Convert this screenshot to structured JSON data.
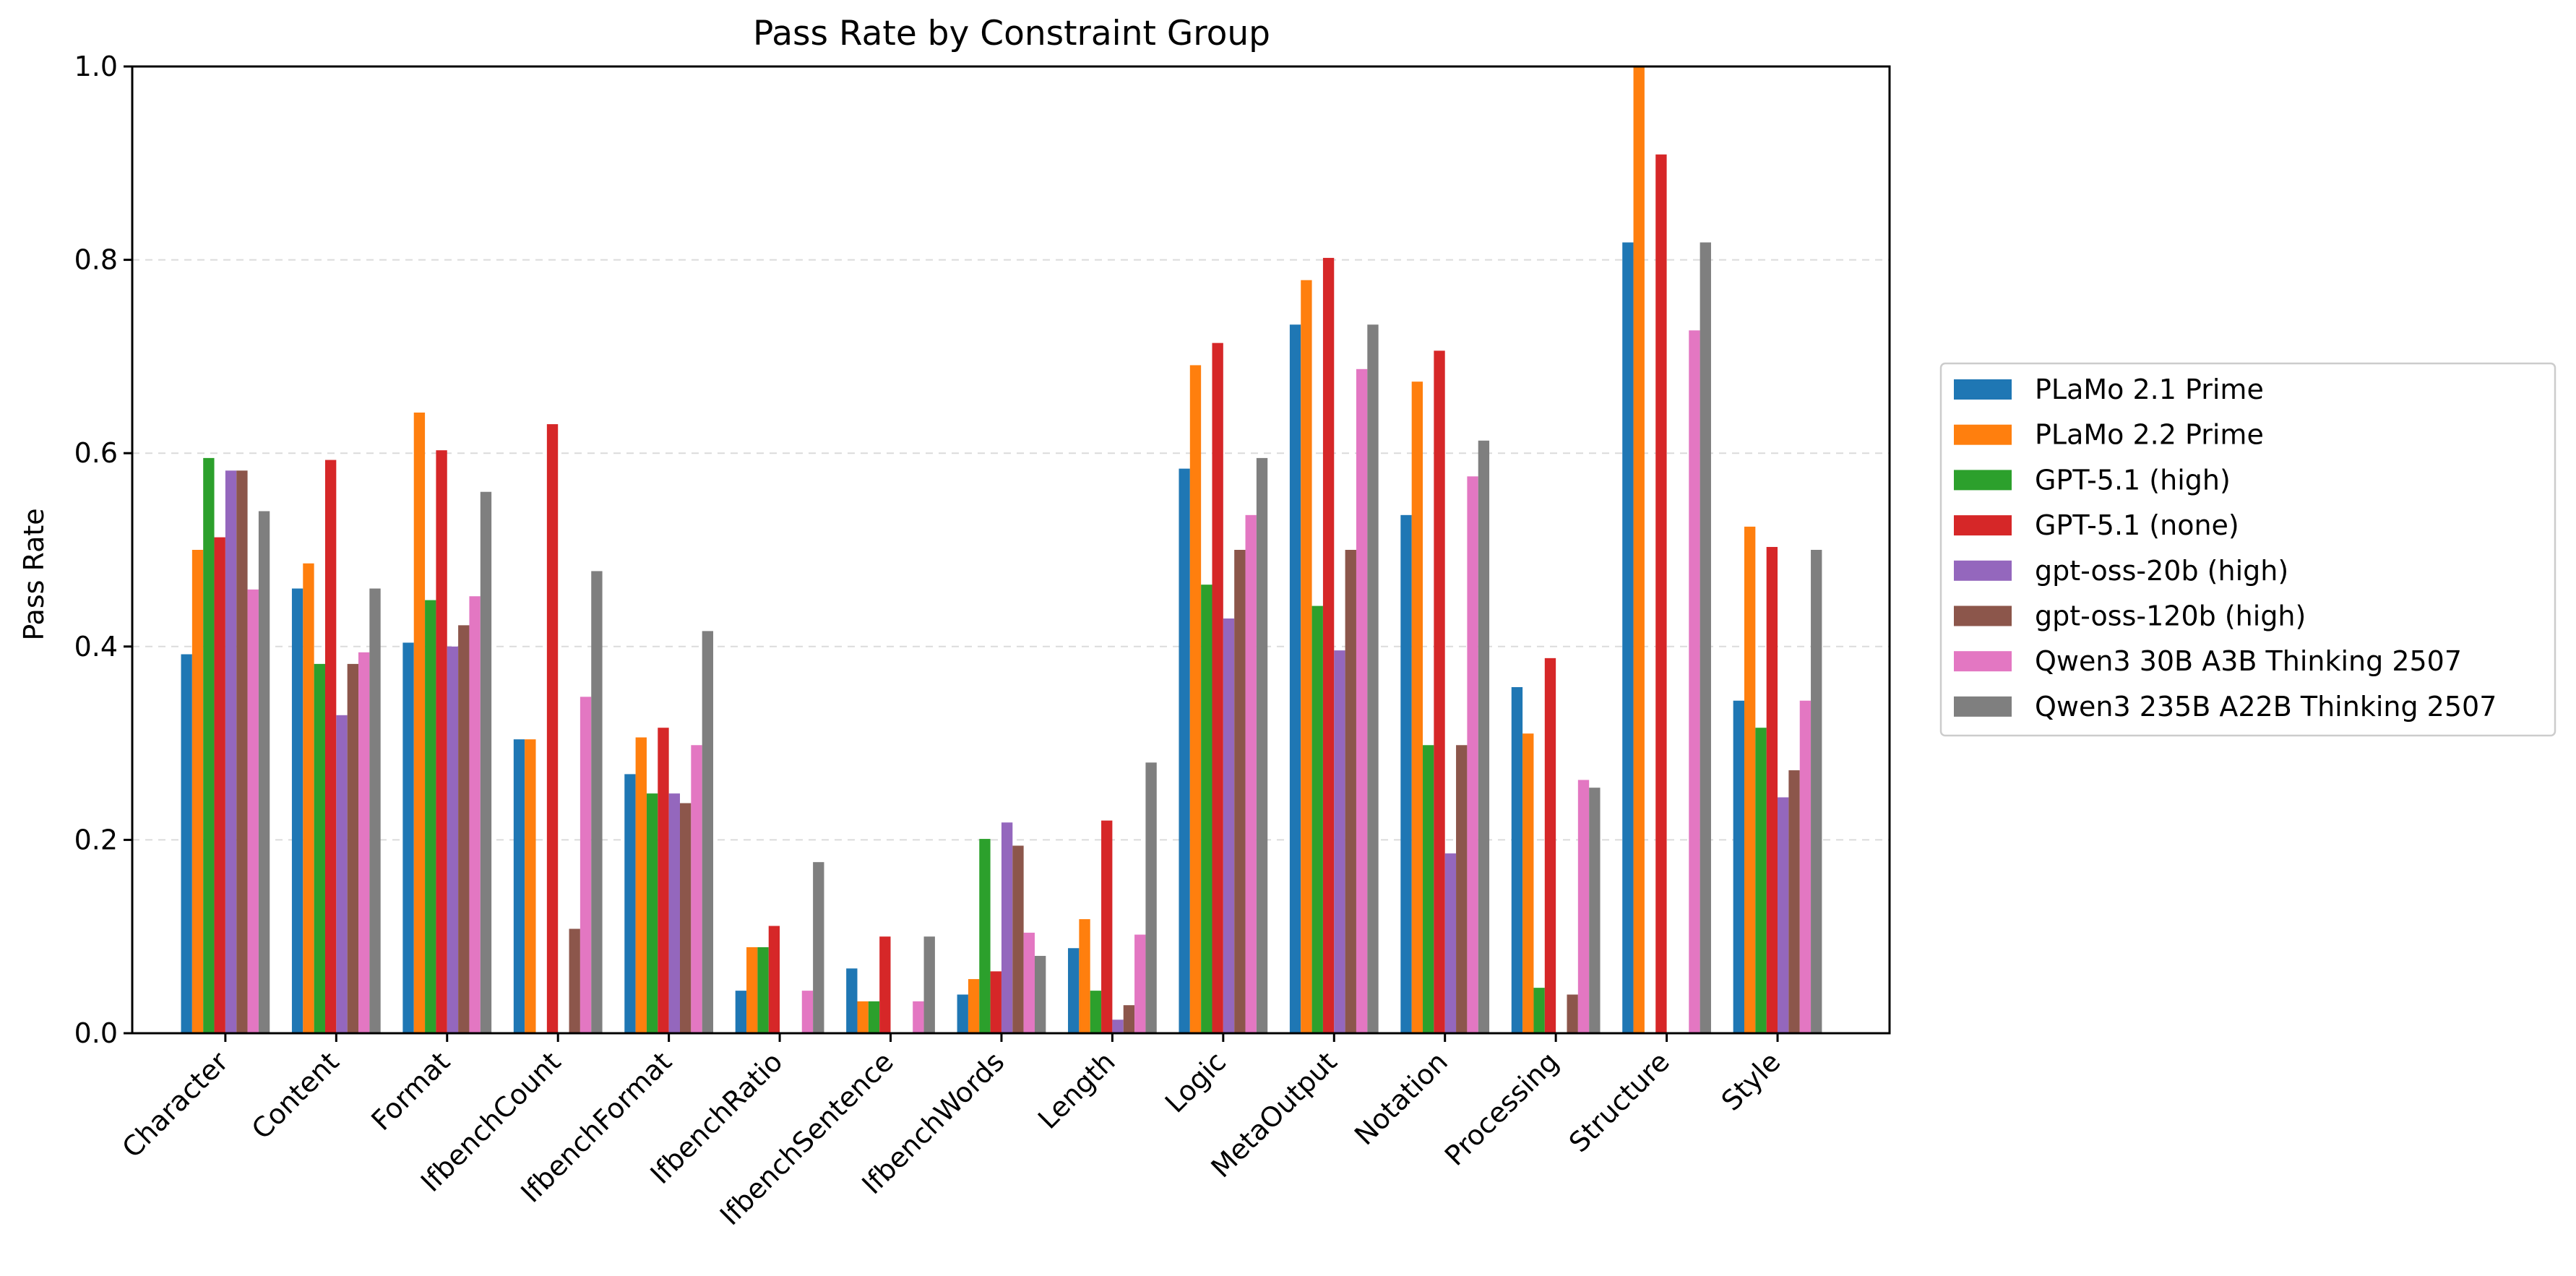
{
  "chart_data": {
    "type": "bar",
    "title": "Pass Rate by Constraint Group",
    "xlabel": "",
    "ylabel": "Pass Rate",
    "ylim": [
      0,
      1.0
    ],
    "yticks": [
      "0.0",
      "0.2",
      "0.4",
      "0.6",
      "0.8",
      "1.0"
    ],
    "grid": "y-dashed",
    "legend_position": "right",
    "categories": [
      "Character",
      "Content",
      "Format",
      "IfbenchCount",
      "IfbenchFormat",
      "IfbenchRatio",
      "IfbenchSentence",
      "IfbenchWords",
      "Length",
      "Logic",
      "MetaOutput",
      "Notation",
      "Processing",
      "Structure",
      "Style"
    ],
    "series": [
      {
        "name": "PLaMo 2.1 Prime",
        "color": "#1f77b4",
        "values": [
          0.392,
          0.46,
          0.404,
          0.304,
          0.268,
          0.044,
          0.067,
          0.04,
          0.088,
          0.584,
          0.733,
          0.536,
          0.358,
          0.818,
          0.344
        ]
      },
      {
        "name": "PLaMo 2.2 Prime",
        "color": "#ff7f0e",
        "values": [
          0.5,
          0.486,
          0.642,
          0.304,
          0.306,
          0.089,
          0.033,
          0.056,
          0.118,
          0.691,
          0.779,
          0.674,
          0.31,
          1.0,
          0.524
        ]
      },
      {
        "name": "GPT-5.1 (high)",
        "color": "#2ca02c",
        "values": [
          0.595,
          0.382,
          0.448,
          0.0,
          0.248,
          0.089,
          0.033,
          0.201,
          0.044,
          0.464,
          0.442,
          0.298,
          0.047,
          0.0,
          0.316
        ]
      },
      {
        "name": "GPT-5.1 (none)",
        "color": "#d62728",
        "values": [
          0.513,
          0.593,
          0.603,
          0.63,
          0.316,
          0.111,
          0.1,
          0.064,
          0.22,
          0.714,
          0.802,
          0.706,
          0.388,
          0.909,
          0.503
        ]
      },
      {
        "name": "gpt-oss-20b (high)",
        "color": "#9467bd",
        "values": [
          0.582,
          0.329,
          0.4,
          0.0,
          0.248,
          0.0,
          0.0,
          0.218,
          0.014,
          0.429,
          0.396,
          0.186,
          0.0,
          0.0,
          0.244
        ]
      },
      {
        "name": "gpt-oss-120b (high)",
        "color": "#8c564b",
        "values": [
          0.582,
          0.382,
          0.422,
          0.108,
          0.238,
          0.0,
          0.0,
          0.194,
          0.029,
          0.5,
          0.5,
          0.298,
          0.04,
          0.0,
          0.272
        ]
      },
      {
        "name": "Qwen3 30B A3B Thinking 2507",
        "color": "#e377c2",
        "values": [
          0.459,
          0.394,
          0.452,
          0.348,
          0.298,
          0.044,
          0.033,
          0.104,
          0.102,
          0.536,
          0.687,
          0.576,
          0.262,
          0.727,
          0.344
        ]
      },
      {
        "name": "Qwen3 235B A22B Thinking 2507",
        "color": "#7f7f7f",
        "values": [
          0.54,
          0.46,
          0.56,
          0.478,
          0.416,
          0.177,
          0.1,
          0.08,
          0.28,
          0.595,
          0.733,
          0.613,
          0.254,
          0.818,
          0.5
        ]
      }
    ]
  }
}
